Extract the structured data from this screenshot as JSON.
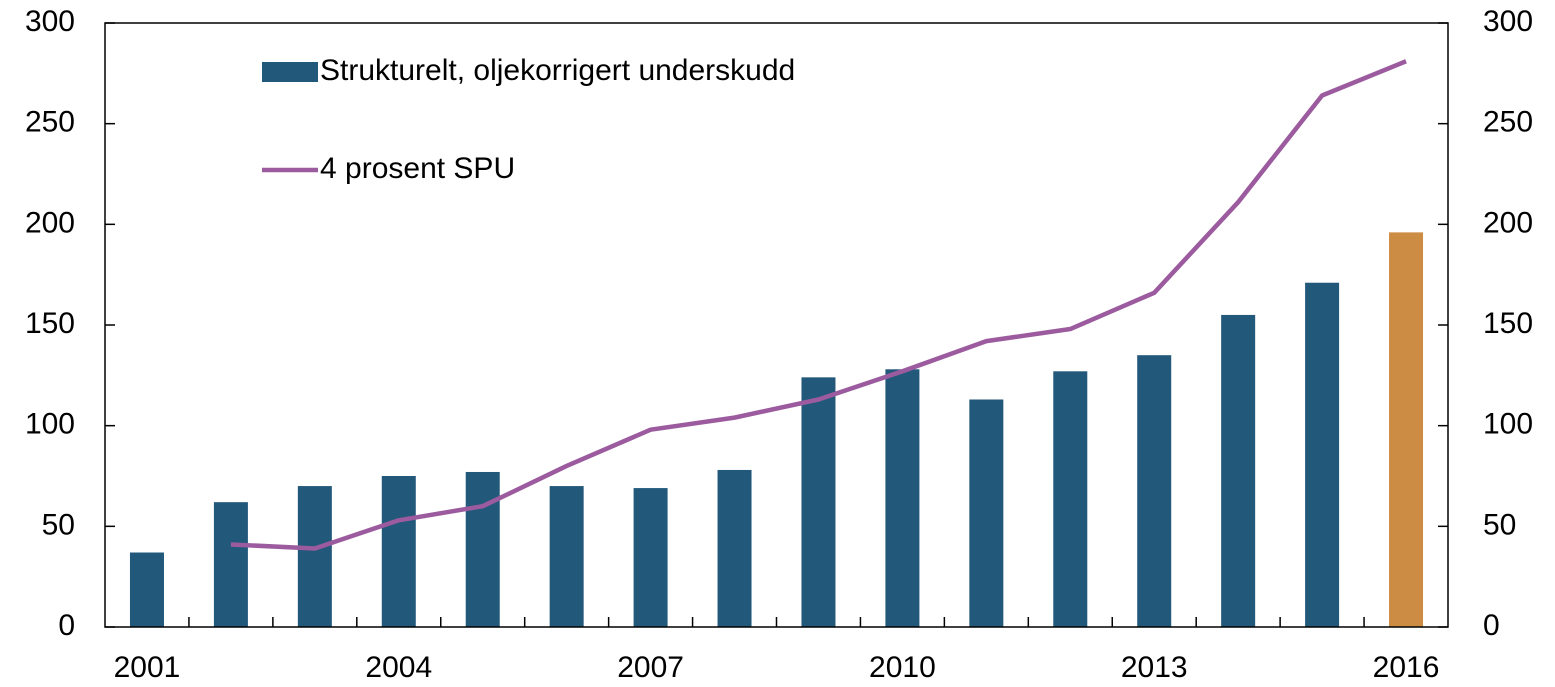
{
  "chart_data": {
    "type": "bar_line",
    "categories": [
      "2001",
      null,
      null,
      "2004",
      null,
      null,
      "2007",
      null,
      null,
      "2010",
      null,
      null,
      "2013",
      null,
      null,
      "2016"
    ],
    "series": [
      {
        "name": "Strukturelt, oljekorrigert underskudd",
        "type": "bar",
        "color": "#22587a",
        "colors": [
          "#22587a",
          "#22587a",
          "#22587a",
          "#22587a",
          "#22587a",
          "#22587a",
          "#22587a",
          "#22587a",
          "#22587a",
          "#22587a",
          "#22587a",
          "#22587a",
          "#22587a",
          "#22587a",
          "#22587a",
          "#cc8c44"
        ],
        "values": [
          37,
          62,
          70,
          75,
          77,
          70,
          69,
          78,
          124,
          128,
          113,
          127,
          135,
          155,
          171,
          196
        ]
      },
      {
        "name": "4 prosent SPU",
        "type": "line",
        "color": "#9b5b9e",
        "values": [
          null,
          41,
          39,
          53,
          60,
          80,
          98,
          104,
          113,
          127,
          142,
          148,
          166,
          211,
          264,
          281
        ]
      }
    ],
    "ylim": [
      0,
      300
    ],
    "yticks": [
      0,
      50,
      100,
      150,
      200,
      250,
      300
    ],
    "y2lim": [
      0,
      300
    ],
    "y2ticks": [
      0,
      50,
      100,
      150,
      200,
      250,
      300
    ],
    "legend": "upper left",
    "grid": false
  }
}
